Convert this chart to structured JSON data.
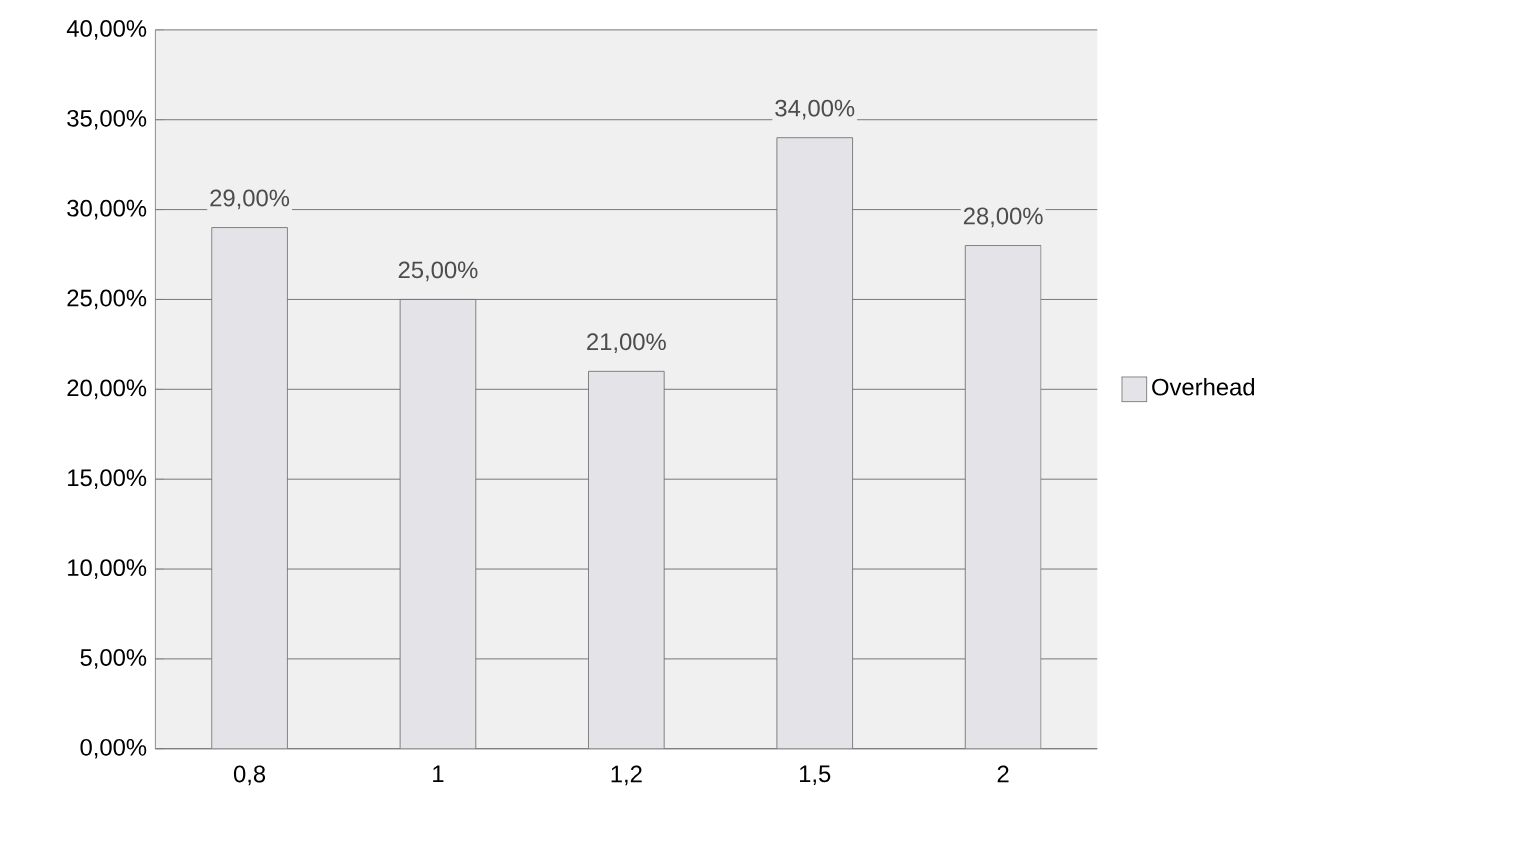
{
  "chart_data": {
    "type": "bar",
    "categories": [
      "0,8",
      "1",
      "1,2",
      "1,5",
      "2"
    ],
    "series": [
      {
        "name": "Overhead",
        "color": "#e4e4e8",
        "values": [
          29,
          25,
          21,
          34,
          28
        ],
        "value_labels": [
          "29,00%",
          "25,00%",
          "21,00%",
          "34,00%",
          "28,00%"
        ]
      }
    ],
    "ylim": [
      0,
      40
    ],
    "yticks": [
      {
        "value": 0,
        "label": "0,00%"
      },
      {
        "value": 5,
        "label": "5,00%"
      },
      {
        "value": 10,
        "label": "10,00%"
      },
      {
        "value": 15,
        "label": "15,00%"
      },
      {
        "value": 20,
        "label": "20,00%"
      },
      {
        "value": 25,
        "label": "25,00%"
      },
      {
        "value": 30,
        "label": "30,00%"
      },
      {
        "value": 35,
        "label": "35,00%"
      },
      {
        "value": 40,
        "label": "40,00%"
      }
    ],
    "grid": "y",
    "legend": "right"
  }
}
